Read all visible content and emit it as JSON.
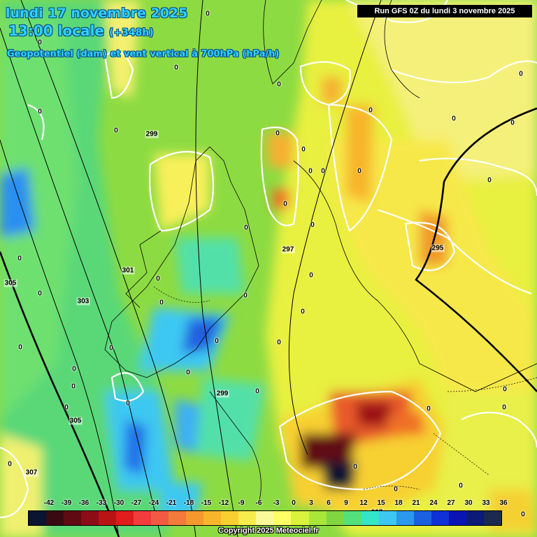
{
  "header": {
    "date_line": "lundi 17 novembre 2025",
    "time_line": "13:00 locale",
    "lead_time": "(+348h)",
    "parameter": "Geopotentiel (dam) et vent vertical à 700hPa (hPa/h)",
    "run_info": "Run GFS 0Z du lundi 3 novembre 2025"
  },
  "geopotential_labels": [
    "299",
    "297",
    "295",
    "301",
    "303",
    "305",
    "305",
    "307",
    "299",
    "297"
  ],
  "vertical_wind_labels": [
    "0",
    "0",
    "0",
    "0",
    "0",
    "0",
    "0",
    "0",
    "0",
    "0",
    "0",
    "0",
    "0",
    "0",
    "0",
    "0",
    "0",
    "0",
    "0",
    "0",
    "0",
    "0",
    "0",
    "0",
    "0",
    "0",
    "0",
    "0",
    "0",
    "0",
    "0",
    "0",
    "0",
    "0",
    "0",
    "0",
    "0",
    "0",
    "0",
    "0",
    "0",
    "0",
    "0",
    "0"
  ],
  "scale": {
    "ticks": [
      "-42",
      "-39",
      "-36",
      "-33",
      "-30",
      "-27",
      "-24",
      "-21",
      "-18",
      "-15",
      "-12",
      "-9",
      "-6",
      "-3",
      "0",
      "3",
      "6",
      "9",
      "12",
      "15",
      "18",
      "21",
      "24",
      "27",
      "30",
      "33",
      "36"
    ],
    "colors": [
      "#0b1430",
      "#3a0a12",
      "#600a14",
      "#8c0c18",
      "#b81414",
      "#e01c1c",
      "#f03c3c",
      "#f25a44",
      "#f27a3a",
      "#f5982e",
      "#f7b52a",
      "#f7d030",
      "#f7ec4c",
      "#fafa9a",
      "#ffff66",
      "#d9f23c",
      "#a8e63a",
      "#7fd640",
      "#52e07a",
      "#34e6c8",
      "#3cc8f2",
      "#2a98ec",
      "#1a60e0",
      "#1030d8",
      "#0a14b4",
      "#0c1a78",
      "#1a2a50"
    ]
  },
  "copyright": "Copyright 2025 Meteociel.fr"
}
